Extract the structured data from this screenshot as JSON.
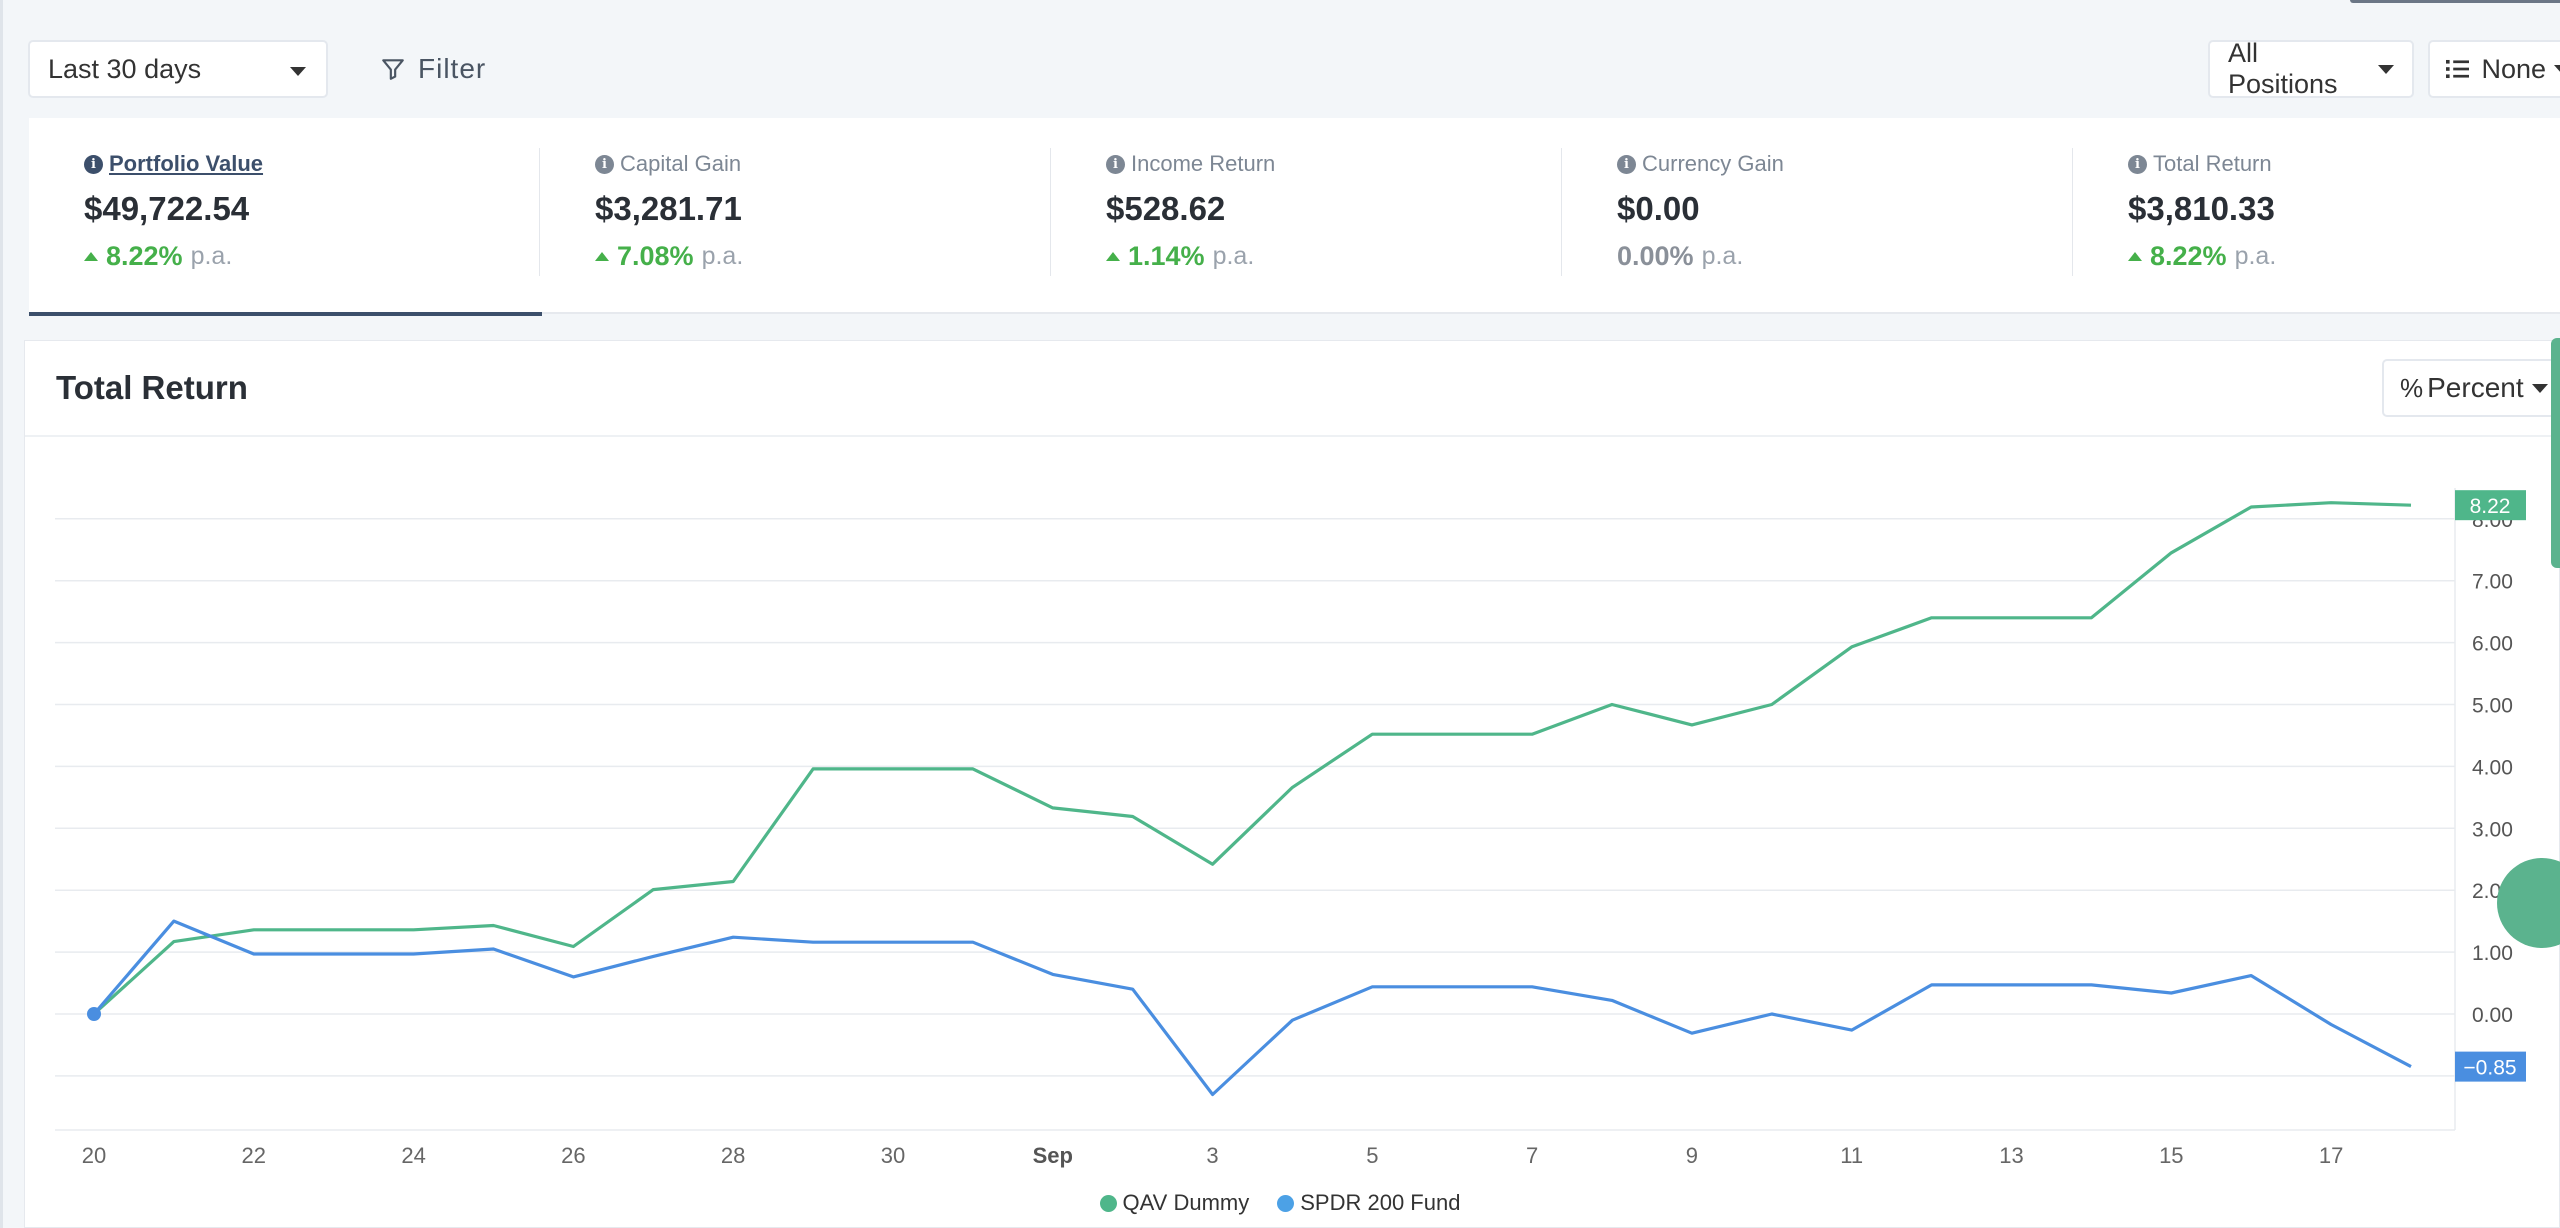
{
  "toolbar": {
    "date_range": "Last 30 days",
    "filter_label": "Filter",
    "positions_label": "All Positions",
    "grouping_label": "None"
  },
  "metrics": [
    {
      "label": "Portfolio Value",
      "value": "$49,722.54",
      "change": "8.22%",
      "suffix": "p.a.",
      "trend": "up",
      "active": true
    },
    {
      "label": "Capital Gain",
      "value": "$3,281.71",
      "change": "7.08%",
      "suffix": "p.a.",
      "trend": "up",
      "active": false
    },
    {
      "label": "Income Return",
      "value": "$528.62",
      "change": "1.14%",
      "suffix": "p.a.",
      "trend": "up",
      "active": false
    },
    {
      "label": "Currency Gain",
      "value": "$0.00",
      "change": "0.00%",
      "suffix": "p.a.",
      "trend": "flat",
      "active": false
    },
    {
      "label": "Total Return",
      "value": "$3,810.33",
      "change": "8.22%",
      "suffix": "p.a.",
      "trend": "up",
      "active": false
    }
  ],
  "chart_card": {
    "title": "Total Return",
    "mode_label": "Percent"
  },
  "colors": {
    "qav": "#4fb68a",
    "spdr": "#4a8ee0",
    "up": "#45b04a",
    "accent": "#3c4f6b"
  },
  "chart_data": {
    "type": "line",
    "x": [
      "Aug 20",
      "Aug 21",
      "Aug 22",
      "Aug 23",
      "Aug 24",
      "Aug 25",
      "Aug 26",
      "Aug 27",
      "Aug 28",
      "Aug 29",
      "Aug 30",
      "Aug 31",
      "Sep 1",
      "Sep 2",
      "Sep 3",
      "Sep 4",
      "Sep 5",
      "Sep 6",
      "Sep 7",
      "Sep 8",
      "Sep 9",
      "Sep 10",
      "Sep 11",
      "Sep 12",
      "Sep 13",
      "Sep 14",
      "Sep 15",
      "Sep 16",
      "Sep 17",
      "Sep 18"
    ],
    "x_tick_labels": [
      {
        "x": "Aug 20",
        "label": "20",
        "bold": false
      },
      {
        "x": "Aug 22",
        "label": "22",
        "bold": false
      },
      {
        "x": "Aug 24",
        "label": "24",
        "bold": false
      },
      {
        "x": "Aug 26",
        "label": "26",
        "bold": false
      },
      {
        "x": "Aug 28",
        "label": "28",
        "bold": false
      },
      {
        "x": "Aug 30",
        "label": "30",
        "bold": false
      },
      {
        "x": "Sep 1",
        "label": "Sep",
        "bold": true
      },
      {
        "x": "Sep 3",
        "label": "3",
        "bold": false
      },
      {
        "x": "Sep 5",
        "label": "5",
        "bold": false
      },
      {
        "x": "Sep 7",
        "label": "7",
        "bold": false
      },
      {
        "x": "Sep 9",
        "label": "9",
        "bold": false
      },
      {
        "x": "Sep 11",
        "label": "11",
        "bold": false
      },
      {
        "x": "Sep 13",
        "label": "13",
        "bold": false
      },
      {
        "x": "Sep 15",
        "label": "15",
        "bold": false
      },
      {
        "x": "Sep 17",
        "label": "17",
        "bold": false
      }
    ],
    "y_ticks": [
      "0.00",
      "1.00",
      "2.00",
      "3.00",
      "4.00",
      "5.00",
      "6.00",
      "7.00",
      "8.00"
    ],
    "ylim": [
      -1.9,
      8.6
    ],
    "grid": true,
    "series": [
      {
        "name": "QAV Dummy",
        "color": "#4fb68a",
        "last_label": "8.22",
        "values": [
          0.0,
          1.17,
          1.36,
          1.36,
          1.36,
          1.43,
          1.09,
          2.01,
          2.14,
          3.96,
          3.96,
          3.96,
          3.33,
          3.19,
          2.42,
          3.66,
          4.52,
          4.52,
          4.52,
          5.0,
          4.67,
          5.0,
          5.93,
          6.4,
          6.4,
          6.4,
          7.45,
          8.19,
          8.26,
          8.22
        ]
      },
      {
        "name": "SPDR 200 Fund",
        "color": "#4a8ee0",
        "last_label": "-0.85",
        "values": [
          0.0,
          1.5,
          0.97,
          0.97,
          0.97,
          1.05,
          0.6,
          0.93,
          1.24,
          1.16,
          1.16,
          1.16,
          0.64,
          0.4,
          -1.3,
          -0.1,
          0.44,
          0.44,
          0.44,
          0.22,
          -0.31,
          0.0,
          -0.26,
          0.47,
          0.47,
          0.47,
          0.34,
          0.62,
          -0.17,
          -0.85
        ]
      }
    ],
    "legend_position": "bottom-center"
  }
}
